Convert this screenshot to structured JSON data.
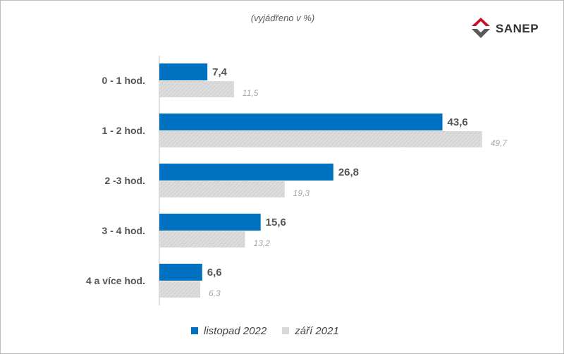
{
  "subtitle": "(vyjádřeno v %)",
  "logo": {
    "text": "SANEP",
    "icon": "sanep-logo-icon"
  },
  "colors": {
    "series_main": "#0070c0",
    "series_prev": "#d9d9d9",
    "logo_red": "#c8102e",
    "logo_gray": "#595959"
  },
  "chart_data": {
    "type": "bar",
    "orientation": "horizontal",
    "categories": [
      "0 - 1 hod.",
      "1 - 2 hod.",
      "2 -3 hod.",
      "3 - 4 hod.",
      "4 a více hod."
    ],
    "series": [
      {
        "name": "listopad 2022",
        "values": [
          7.4,
          43.6,
          26.8,
          15.6,
          6.6
        ],
        "labels": [
          "7,4",
          "43,6",
          "26,8",
          "15,6",
          "6,6"
        ]
      },
      {
        "name": "září 2021",
        "values": [
          11.5,
          49.7,
          19.3,
          13.2,
          6.3
        ],
        "labels": [
          "11,5",
          "49,7",
          "19,3",
          "13,2",
          "6,3"
        ]
      }
    ],
    "xlim": [
      0,
      60
    ],
    "title": "(vyjádřeno v %)",
    "legend_position": "bottom",
    "grid": false
  }
}
